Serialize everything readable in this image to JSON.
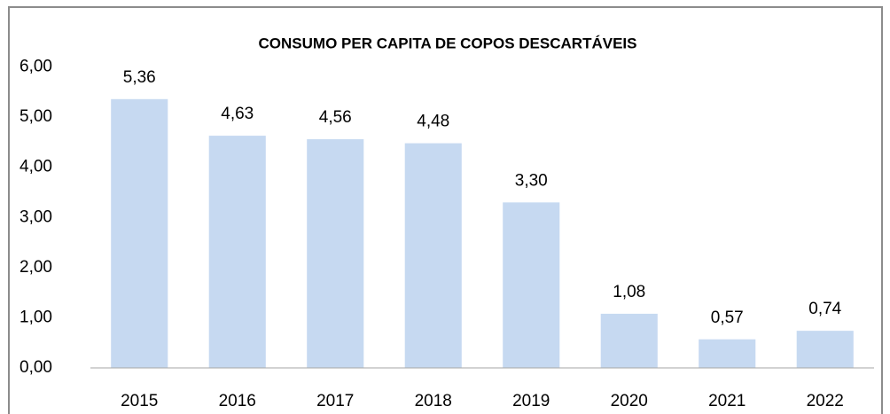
{
  "chart_data": {
    "type": "bar",
    "title": "CONSUMO PER CAPITA DE COPOS DESCARTÁVEIS",
    "categories": [
      "2015",
      "2016",
      "2017",
      "2018",
      "2019",
      "2020",
      "2021",
      "2022"
    ],
    "values": [
      5.36,
      4.63,
      4.56,
      4.48,
      3.3,
      1.08,
      0.57,
      0.74
    ],
    "value_labels": [
      "5,36",
      "4,63",
      "4,56",
      "4,48",
      "3,30",
      "1,08",
      "0,57",
      "0,74"
    ],
    "color": "#c6d9f1",
    "ylim": [
      0,
      6
    ],
    "yticks": [
      {
        "value": 0,
        "label": "0,00"
      },
      {
        "value": 1,
        "label": "1,00"
      },
      {
        "value": 2,
        "label": "2,00"
      },
      {
        "value": 3,
        "label": "3,00"
      },
      {
        "value": 4,
        "label": "4,00"
      },
      {
        "value": 5,
        "label": "5,00"
      },
      {
        "value": 6,
        "label": "6,00"
      }
    ],
    "grid": false
  }
}
